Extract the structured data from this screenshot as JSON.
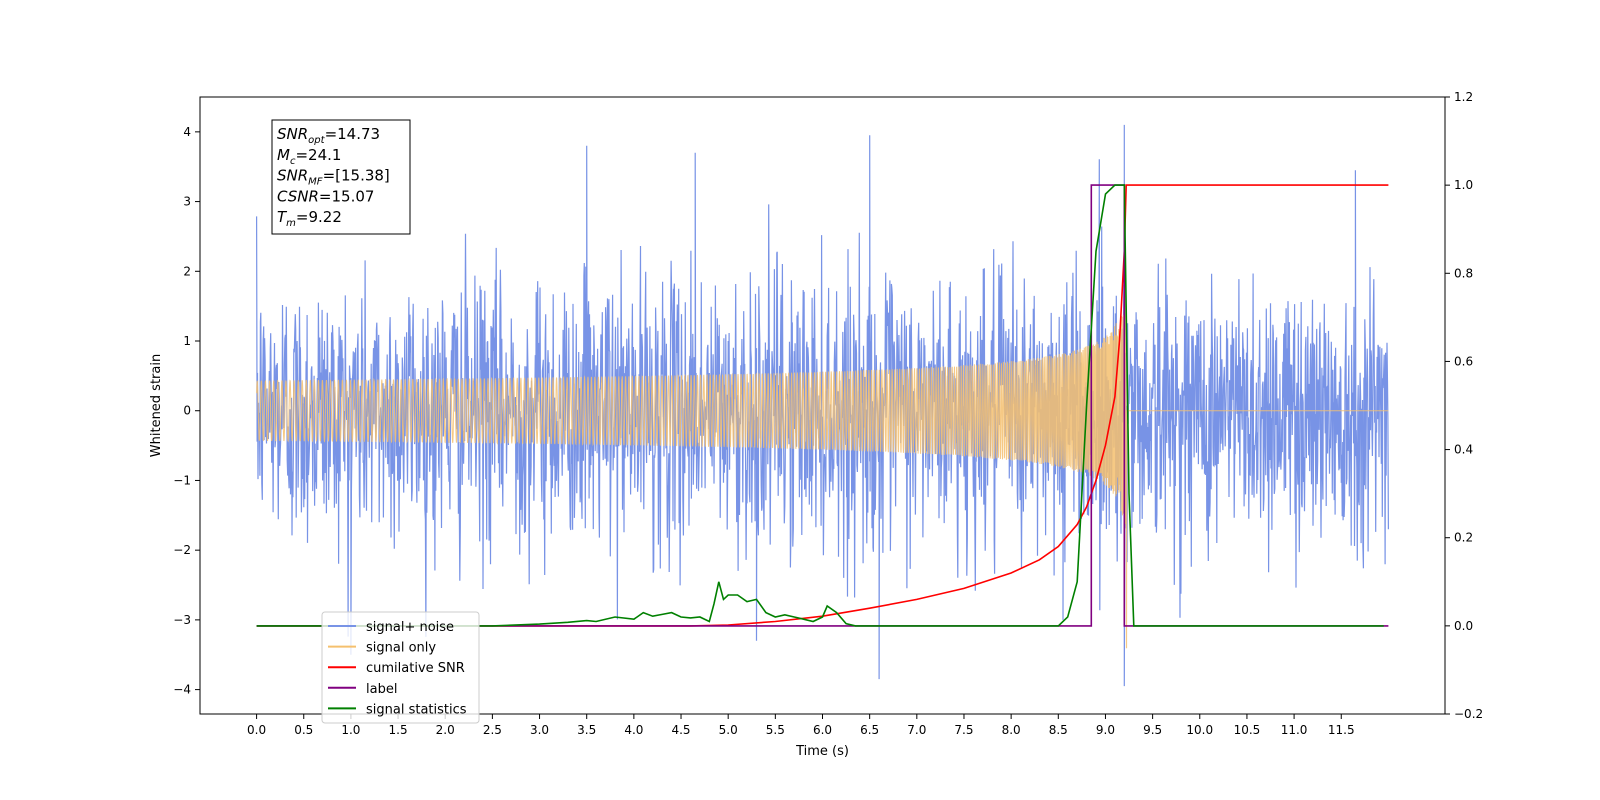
{
  "chart_data": {
    "type": "line",
    "xlabel": "Time (s)",
    "ylabel": "Whitened strain",
    "xlim": [
      -0.6,
      12.6
    ],
    "ylim": [
      -4.35,
      4.5
    ],
    "y2lim": [
      -0.2,
      1.2
    ],
    "x_ticks": [
      0.0,
      0.5,
      1.0,
      1.5,
      2.0,
      2.5,
      3.0,
      3.5,
      4.0,
      4.5,
      5.0,
      5.5,
      6.0,
      6.5,
      7.0,
      7.5,
      8.0,
      8.5,
      9.0,
      9.5,
      10.0,
      10.5,
      11.0,
      11.5
    ],
    "x_tick_labels": [
      "0.0",
      "0.5",
      "1.0",
      "1.5",
      "2.0",
      "2.5",
      "3.0",
      "3.5",
      "4.0",
      "4.5",
      "5.0",
      "5.5",
      "6.0",
      "6.5",
      "7.0",
      "7.5",
      "8.0",
      "8.5",
      "9.0",
      "9.5",
      "10.0",
      "10.5",
      "11.0",
      "11.5"
    ],
    "y_ticks": [
      -4,
      -3,
      -2,
      -1,
      0,
      1,
      2,
      3,
      4
    ],
    "y_tick_labels": [
      "−4",
      "−3",
      "−2",
      "−1",
      "0",
      "1",
      "2",
      "3",
      "4"
    ],
    "y2_ticks": [
      -0.2,
      0.0,
      0.2,
      0.4,
      0.6,
      0.8,
      1.0,
      1.2
    ],
    "y2_tick_labels": [
      "−0.2",
      "0.0",
      "0.2",
      "0.4",
      "0.6",
      "0.8",
      "1.0",
      "1.2"
    ],
    "grid": false,
    "legend_position": "lower-left",
    "annotation": {
      "lines": [
        {
          "base": "SNR",
          "sub": "opt",
          "value": "=14.73"
        },
        {
          "base": "M",
          "sub": "c",
          "value": "=24.1"
        },
        {
          "base": "SNR",
          "sub": "MF",
          "value": "=[15.38]"
        },
        {
          "base": "CSNR",
          "sub": "",
          "value": "=15.07"
        },
        {
          "base": "T",
          "sub": "m",
          "value": "=9.22"
        }
      ]
    },
    "series": [
      {
        "name": "signal+ noise",
        "color": "#7893e6",
        "axis": "left",
        "kind": "noise",
        "x_range": [
          0.0,
          12.0
        ],
        "envelope": 1.6,
        "spikes": [
          [
            1.0,
            -3.5
          ],
          [
            3.5,
            3.8
          ],
          [
            4.65,
            3.7
          ],
          [
            6.5,
            3.95
          ],
          [
            6.6,
            -3.85
          ],
          [
            9.2,
            4.1
          ],
          [
            9.2,
            -3.95
          ],
          [
            11.65,
            3.45
          ],
          [
            5.3,
            -3.3
          ],
          [
            8.55,
            -3.0
          ]
        ]
      },
      {
        "name": "signal only",
        "color": "#f5c06e",
        "axis": "left",
        "kind": "chirp",
        "x_range": [
          0.0,
          12.0
        ],
        "merger": 9.22,
        "peak": 2.0,
        "min": -3.4
      },
      {
        "name": "cumilative SNR",
        "color": "#ff0000",
        "axis": "right",
        "x": [
          0.0,
          4.6,
          5.0,
          5.5,
          6.0,
          6.5,
          7.0,
          7.5,
          8.0,
          8.3,
          8.5,
          8.7,
          8.8,
          8.9,
          9.0,
          9.1,
          9.15,
          9.2,
          9.22,
          9.3,
          12.0
        ],
        "y": [
          0.0,
          0.0,
          0.002,
          0.01,
          0.022,
          0.04,
          0.06,
          0.085,
          0.12,
          0.15,
          0.18,
          0.23,
          0.27,
          0.33,
          0.41,
          0.52,
          0.65,
          0.85,
          1.0,
          1.0,
          1.0
        ]
      },
      {
        "name": "label",
        "color": "#800080",
        "axis": "right",
        "x": [
          0.0,
          8.85,
          8.85,
          9.2,
          9.2,
          12.0
        ],
        "y": [
          0.0,
          0.0,
          1.0,
          1.0,
          0.0,
          0.0
        ]
      },
      {
        "name": "signal statistics",
        "color": "#008000",
        "axis": "right",
        "x": [
          0.0,
          2.5,
          3.0,
          3.3,
          3.5,
          3.6,
          3.8,
          4.0,
          4.1,
          4.2,
          4.3,
          4.4,
          4.5,
          4.6,
          4.7,
          4.8,
          4.85,
          4.9,
          4.95,
          5.0,
          5.1,
          5.2,
          5.3,
          5.4,
          5.5,
          5.6,
          5.7,
          5.8,
          5.9,
          6.0,
          6.05,
          6.15,
          6.25,
          6.35,
          8.5,
          8.6,
          8.7,
          8.8,
          8.9,
          9.0,
          9.1,
          9.2,
          9.25,
          9.3,
          11.95
        ],
        "y": [
          0.0,
          0.0,
          0.004,
          0.008,
          0.012,
          0.01,
          0.02,
          0.015,
          0.03,
          0.022,
          0.026,
          0.03,
          0.02,
          0.018,
          0.02,
          0.01,
          0.05,
          0.1,
          0.06,
          0.07,
          0.07,
          0.055,
          0.06,
          0.03,
          0.02,
          0.025,
          0.02,
          0.015,
          0.01,
          0.02,
          0.045,
          0.03,
          0.005,
          0.0,
          0.0,
          0.02,
          0.1,
          0.5,
          0.85,
          0.98,
          1.0,
          1.0,
          0.3,
          0.0,
          0.0
        ]
      }
    ]
  }
}
